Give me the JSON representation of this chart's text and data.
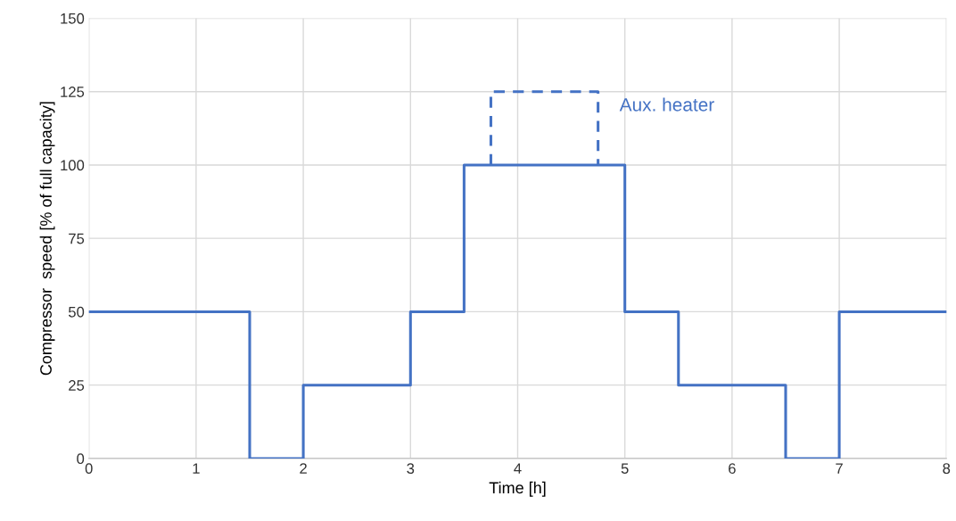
{
  "chart_data": {
    "type": "step",
    "xlabel": "Time [h]",
    "ylabel": "Compressor  speed [% of full capacity]",
    "xlim": [
      0,
      8
    ],
    "xticks": [
      0,
      1,
      2,
      3,
      4,
      5,
      6,
      7,
      8
    ],
    "ylim": [
      0,
      150
    ],
    "yticks": [
      0,
      25,
      50,
      75,
      100,
      125,
      150
    ],
    "grid": true,
    "series": [
      {
        "color": "#4472c4",
        "line_style": "solid",
        "x": [
          0,
          1.5,
          2,
          3,
          3.5,
          5,
          5.5,
          6.5,
          7,
          8
        ],
        "values": [
          50,
          0,
          25,
          50,
          100,
          50,
          25,
          0,
          50,
          50
        ]
      },
      {
        "type": "line",
        "name": "Aux. heater",
        "color": "#4472c4",
        "line_style": "dashed",
        "x": [
          3.75,
          3.75,
          4.75,
          4.75
        ],
        "values": [
          100,
          125,
          125,
          100
        ]
      }
    ]
  }
}
